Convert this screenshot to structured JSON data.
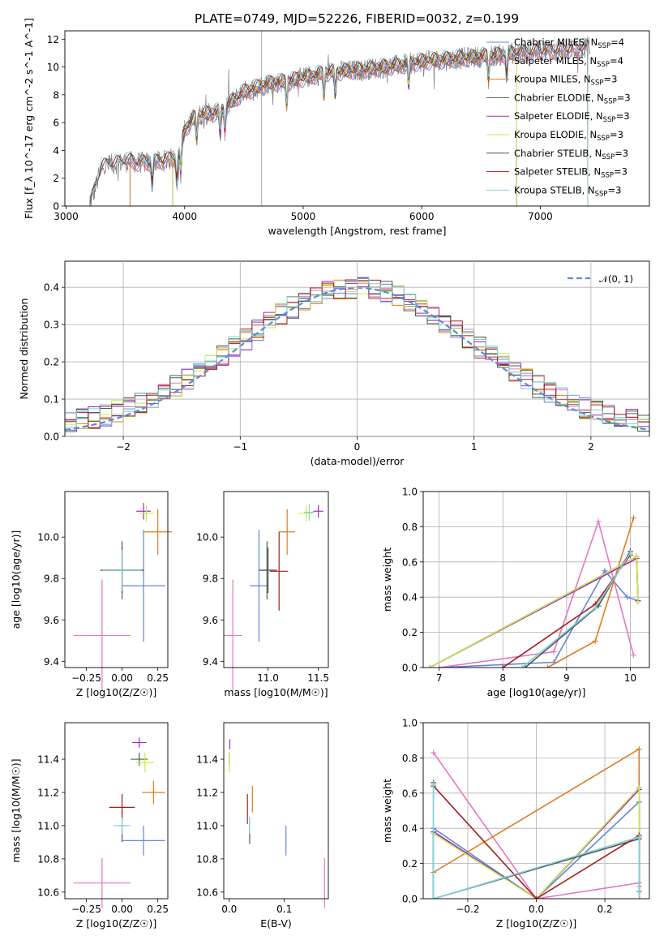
{
  "figure": {
    "title": "PLATE=0749, MJD=52226, FIBERID=0032, z=0.199"
  },
  "colors": {
    "Chabrier MILES": "#6088d8",
    "Salpeter MILES": "#e377c2",
    "Kroupa MILES": "#e07b1f",
    "Chabrier ELODIE": "#3d6b3a",
    "Salpeter ELODIE": "#a02bc2",
    "Kroupa ELODIE": "#c9e84a",
    "Chabrier STELIB": "#555555",
    "Salpeter STELIB": "#a81c1c",
    "Kroupa STELIB": "#7fd3da",
    "data": "#808080",
    "normal": "#5b8bd6"
  },
  "chart_data": [
    {
      "id": "spectrum",
      "type": "line",
      "xlabel": "wavelength [Angstrom, rest frame]",
      "ylabel": "Flux [f_λ 10^-17 erg cm^-2 s^-1 A^-1]",
      "xlim": [
        2990,
        7920
      ],
      "ylim": [
        0,
        12.6
      ],
      "xticks": [
        "3000",
        "4000",
        "5000",
        "6000",
        "7000"
      ],
      "yticks": [
        "0",
        "2",
        "4",
        "6",
        "8",
        "10",
        "12"
      ],
      "legend_position": "top-right",
      "legend": [
        {
          "series": "Chabrier MILES",
          "label": "Chabrier MILES, N",
          "nssp": "=4"
        },
        {
          "series": "Salpeter MILES",
          "label": "Salpeter MILES, N",
          "nssp": "=4"
        },
        {
          "series": "Kroupa MILES",
          "label": "Kroupa MILES, N",
          "nssp": "=3"
        },
        {
          "series": "Chabrier ELODIE",
          "label": "Chabrier ELODIE, N",
          "nssp": "=3"
        },
        {
          "series": "Salpeter ELODIE",
          "label": "Salpeter ELODIE, N",
          "nssp": "=3"
        },
        {
          "series": "Kroupa ELODIE",
          "label": "Kroupa ELODIE, N",
          "nssp": "=3"
        },
        {
          "series": "Chabrier STELIB",
          "label": "Chabrier STELIB, N",
          "nssp": "=3"
        },
        {
          "series": "Salpeter STELIB",
          "label": "Salpeter STELIB, N",
          "nssp": "=3"
        },
        {
          "series": "Kroupa STELIB",
          "label": "Kroupa STELIB, N",
          "nssp": "=3"
        }
      ],
      "continuum": {
        "x": [
          3200,
          3300,
          3500,
          3700,
          3850,
          3950,
          4000,
          4100,
          4300,
          4500,
          4700,
          4900,
          5200,
          5500,
          5800,
          6000,
          6300,
          6600,
          6800,
          7000,
          7200,
          7400
        ],
        "y": [
          0,
          2.8,
          3.2,
          3.1,
          3.3,
          3.5,
          5.5,
          6.5,
          6.8,
          8.2,
          8.8,
          9.0,
          9.6,
          9.8,
          10.1,
          10.4,
          10.6,
          10.8,
          11.0,
          11.1,
          11.2,
          11.4
        ]
      },
      "model_ranges": {
        "MILES": [
          3540,
          7400
        ],
        "ELODIE": [
          3900,
          6800
        ],
        "STELIB": [
          3200,
          7400
        ]
      }
    },
    {
      "id": "residuals",
      "type": "histogram",
      "xlabel": "(data-model)/error",
      "ylabel": "Normed distribution",
      "xlim": [
        -2.5,
        2.5
      ],
      "ylim": [
        0,
        0.47
      ],
      "xticks": [
        "−2",
        "−1",
        "0",
        "1",
        "2"
      ],
      "yticks": [
        "0.0",
        "0.1",
        "0.2",
        "0.3",
        "0.4"
      ],
      "grid": true,
      "legend_position": "top-right",
      "reference_label": "𝒩(0, 1)",
      "bin_width": 0.1,
      "bins": [
        -2.5,
        -2.4,
        -2.3,
        -2.2,
        -2.1,
        -2.0,
        -1.9,
        -1.8,
        -1.7,
        -1.6,
        -1.5,
        -1.4,
        -1.3,
        -1.2,
        -1.1,
        -1.0,
        -0.9,
        -0.8,
        -0.7,
        -0.6,
        -0.5,
        -0.4,
        -0.3,
        -0.2,
        -0.1,
        0.0,
        0.1,
        0.2,
        0.3,
        0.4,
        0.5,
        0.6,
        0.7,
        0.8,
        0.9,
        1.0,
        1.1,
        1.2,
        1.3,
        1.4,
        1.5,
        1.6,
        1.7,
        1.8,
        1.9,
        2.0,
        2.1,
        2.2,
        2.3,
        2.4
      ]
    },
    {
      "id": "age-Z",
      "type": "scatter",
      "xlabel": "Z [log10(Z/Z☉)]",
      "ylabel": "age [log10(age/yr)]",
      "xlim": [
        -0.4,
        0.32
      ],
      "ylim": [
        9.37,
        10.22
      ],
      "xticks": [
        "−0.25",
        "0.00",
        "0.25"
      ],
      "yticks": [
        "9.4",
        "9.6",
        "9.8",
        "10.0"
      ],
      "points": [
        {
          "series": "Chabrier MILES",
          "x": 0.15,
          "y": 9.765,
          "xerr": 0.15,
          "yerr": 0.27
        },
        {
          "series": "Salpeter MILES",
          "x": -0.14,
          "y": 9.525,
          "xerr": 0.2,
          "yerr": 0.27
        },
        {
          "series": "Kroupa MILES",
          "x": 0.25,
          "y": 10.025,
          "xerr": 0.1,
          "yerr": 0.11
        },
        {
          "series": "Chabrier ELODIE",
          "x": 0.0,
          "y": 9.84,
          "xerr": 0.15,
          "yerr": 0.14
        },
        {
          "series": "Salpeter ELODIE",
          "x": 0.15,
          "y": 10.125,
          "xerr": 0.05,
          "yerr": 0.04
        },
        {
          "series": "Kroupa ELODIE",
          "x": 0.17,
          "y": 10.115,
          "xerr": 0.05,
          "yerr": 0.04
        },
        {
          "series": "Chabrier STELIB",
          "x": 0.0,
          "y": 9.84,
          "xerr": 0.15,
          "yerr": 0.11
        },
        {
          "series": "Salpeter STELIB",
          "x": 0.0,
          "y": 9.84,
          "xerr": 0.15,
          "yerr": 0.11
        },
        {
          "series": "Kroupa STELIB",
          "x": 0.0,
          "y": 9.84,
          "xerr": 0.14,
          "yerr": 0.1
        }
      ]
    },
    {
      "id": "age-mass",
      "type": "scatter",
      "xlabel": "mass [log10(M/M☉)]",
      "ylabel": "",
      "xlim": [
        10.56,
        11.6
      ],
      "ylim": [
        9.37,
        10.22
      ],
      "xticks": [
        "11.0",
        "11.5"
      ],
      "yticks": [
        "9.4",
        "9.6",
        "9.8",
        "10.0"
      ],
      "points": [
        {
          "series": "Chabrier MILES",
          "x": 10.91,
          "y": 9.765,
          "xerr": 0.09,
          "yerr": 0.27
        },
        {
          "series": "Salpeter MILES",
          "x": 10.65,
          "y": 9.525,
          "xerr": 0.09,
          "yerr": 0.27
        },
        {
          "series": "Kroupa MILES",
          "x": 11.19,
          "y": 10.025,
          "xerr": 0.08,
          "yerr": 0.11
        },
        {
          "series": "Chabrier ELODIE",
          "x": 10.99,
          "y": 9.84,
          "xerr": 0.08,
          "yerr": 0.14
        },
        {
          "series": "Salpeter ELODIE",
          "x": 11.5,
          "y": 10.125,
          "xerr": 0.05,
          "yerr": 0.03
        },
        {
          "series": "Kroupa ELODIE",
          "x": 11.38,
          "y": 10.115,
          "xerr": 0.07,
          "yerr": 0.04
        },
        {
          "series": "Chabrier STELIB",
          "x": 11.0,
          "y": 9.84,
          "xerr": 0.09,
          "yerr": 0.11
        },
        {
          "series": "Salpeter STELIB",
          "x": 11.11,
          "y": 9.835,
          "xerr": 0.09,
          "yerr": 0.19
        },
        {
          "series": "Kroupa STELIB",
          "x": 11.41,
          "y": 10.12,
          "xerr": 0.05,
          "yerr": 0.04
        }
      ]
    },
    {
      "id": "weight-age",
      "type": "line",
      "xlabel": "age [log10(age/yr)]",
      "ylabel": "mass weight",
      "xlim": [
        6.75,
        10.3
      ],
      "ylim": [
        0,
        1.0
      ],
      "xticks": [
        "7",
        "8",
        "9",
        "10"
      ],
      "yticks": [
        "0.0",
        "0.2",
        "0.4",
        "0.6",
        "0.8",
        "1.0"
      ],
      "grid": true,
      "series": [
        {
          "name": "Chabrier MILES",
          "x": [
            7.0,
            8.8,
            9.6,
            9.95,
            10.12
          ],
          "y": [
            0.0,
            0.03,
            0.55,
            0.4,
            0.38
          ]
        },
        {
          "name": "Salpeter MILES",
          "x": [
            7.0,
            8.8,
            9.5,
            10.05
          ],
          "y": [
            0.0,
            0.09,
            0.83,
            0.07
          ]
        },
        {
          "name": "Kroupa MILES",
          "x": [
            8.7,
            9.45,
            10.05
          ],
          "y": [
            0.0,
            0.15,
            0.85
          ]
        },
        {
          "name": "Chabrier ELODIE",
          "x": [
            6.85,
            10.1,
            10.12
          ],
          "y": [
            0.0,
            0.63,
            0.38
          ]
        },
        {
          "name": "Salpeter ELODIE",
          "x": [
            6.85,
            10.1,
            10.12
          ],
          "y": [
            0.0,
            0.62,
            0.38
          ]
        },
        {
          "name": "Kroupa ELODIE",
          "x": [
            6.85,
            10.1,
            10.12
          ],
          "y": [
            0.0,
            0.63,
            0.37
          ]
        },
        {
          "name": "Chabrier STELIB",
          "x": [
            8.35,
            9.5,
            10.0
          ],
          "y": [
            0.0,
            0.35,
            0.66
          ]
        },
        {
          "name": "Salpeter STELIB",
          "x": [
            8.0,
            9.45,
            10.0
          ],
          "y": [
            0.0,
            0.36,
            0.64
          ]
        },
        {
          "name": "Kroupa STELIB",
          "x": [
            8.3,
            9.45,
            10.0
          ],
          "y": [
            0.0,
            0.34,
            0.65
          ]
        }
      ]
    },
    {
      "id": "mass-Z",
      "type": "scatter",
      "xlabel": "Z [log10(Z/Z☉)]",
      "ylabel": "mass [log10(M/M☉)]",
      "xlim": [
        -0.4,
        0.32
      ],
      "ylim": [
        10.56,
        11.62
      ],
      "xticks": [
        "−0.25",
        "0.00",
        "0.25"
      ],
      "yticks": [
        "10.6",
        "10.8",
        "11.0",
        "11.2",
        "11.4"
      ],
      "points": [
        {
          "series": "Chabrier MILES",
          "x": 0.15,
          "y": 10.91,
          "xerr": 0.15,
          "yerr": 0.09
        },
        {
          "series": "Salpeter MILES",
          "x": -0.14,
          "y": 10.655,
          "xerr": 0.2,
          "yerr": 0.15
        },
        {
          "series": "Kroupa MILES",
          "x": 0.22,
          "y": 11.2,
          "xerr": 0.08,
          "yerr": 0.07
        },
        {
          "series": "Chabrier ELODIE",
          "x": 0.12,
          "y": 11.4,
          "xerr": 0.06,
          "yerr": 0.04
        },
        {
          "series": "Salpeter ELODIE",
          "x": 0.12,
          "y": 11.5,
          "xerr": 0.05,
          "yerr": 0.03
        },
        {
          "series": "Kroupa ELODIE",
          "x": 0.16,
          "y": 11.38,
          "xerr": 0.06,
          "yerr": 0.06
        },
        {
          "series": "Chabrier STELIB",
          "x": 0.0,
          "y": 11.0,
          "xerr": 0.03,
          "yerr": 0.1
        },
        {
          "series": "Salpeter STELIB",
          "x": 0.0,
          "y": 11.11,
          "xerr": 0.09,
          "yerr": 0.08
        },
        {
          "series": "Kroupa STELIB",
          "x": 0.0,
          "y": 11.0,
          "xerr": 0.06,
          "yerr": 0.05
        }
      ]
    },
    {
      "id": "mass-EBV",
      "type": "scatter",
      "xlabel": "E(B-V)",
      "ylabel": "",
      "xlim": [
        -0.01,
        0.18
      ],
      "ylim": [
        10.56,
        11.62
      ],
      "xticks": [
        "0.0",
        "0.1"
      ],
      "yticks": [
        "10.6",
        "10.8",
        "11.0",
        "11.2",
        "11.4"
      ],
      "points": [
        {
          "series": "Chabrier MILES",
          "x": 0.103,
          "y": 10.91,
          "yerr": 0.09
        },
        {
          "series": "Salpeter MILES",
          "x": 0.173,
          "y": 10.655,
          "yerr": 0.15
        },
        {
          "series": "Kroupa MILES",
          "x": 0.042,
          "y": 11.16,
          "yerr": 0.08
        },
        {
          "series": "Chabrier ELODIE",
          "x": 0.0,
          "y": 11.4,
          "yerr": 0.04
        },
        {
          "series": "Salpeter ELODIE",
          "x": 0.001,
          "y": 11.49,
          "yerr": 0.03
        },
        {
          "series": "Kroupa ELODIE",
          "x": 0.0,
          "y": 11.38,
          "yerr": 0.06
        },
        {
          "series": "Chabrier STELIB",
          "x": 0.037,
          "y": 10.97,
          "yerr": 0.08
        },
        {
          "series": "Salpeter STELIB",
          "x": 0.033,
          "y": 11.1,
          "yerr": 0.09
        },
        {
          "series": "Kroupa STELIB",
          "x": 0.037,
          "y": 11.0,
          "yerr": 0.05
        }
      ]
    },
    {
      "id": "weight-Z",
      "type": "line",
      "xlabel": "Z [log10(Z/Z☉)]",
      "ylabel": "mass weight",
      "xlim": [
        -0.33,
        0.33
      ],
      "ylim": [
        0,
        1.0
      ],
      "xticks": [
        "−0.2",
        "0.0",
        "0.2"
      ],
      "yticks": [
        "0.0",
        "0.2",
        "0.4",
        "0.6",
        "0.8",
        "1.0"
      ],
      "grid": true,
      "series": [
        {
          "name": "Chabrier MILES",
          "x": [
            -0.3,
            -0.3,
            0.0,
            0.3,
            0.3
          ],
          "y": [
            0.0,
            0.4,
            0.0,
            0.55,
            0.04
          ]
        },
        {
          "name": "Salpeter MILES",
          "x": [
            -0.3,
            0.0,
            0.3,
            0.3
          ],
          "y": [
            0.83,
            0.0,
            0.09,
            0.07
          ]
        },
        {
          "name": "Kroupa MILES",
          "x": [
            -0.3,
            0.3,
            0.3
          ],
          "y": [
            0.15,
            0.85,
            0.0
          ]
        },
        {
          "name": "Chabrier ELODIE",
          "x": [
            -0.3,
            -0.3,
            0.0,
            0.3,
            0.3
          ],
          "y": [
            0.0,
            0.38,
            0.0,
            0.63,
            0.0
          ]
        },
        {
          "name": "Salpeter ELODIE",
          "x": [
            -0.3,
            -0.3,
            0.0,
            0.3,
            0.3
          ],
          "y": [
            0.0,
            0.38,
            0.0,
            0.62,
            0.0
          ]
        },
        {
          "name": "Kroupa ELODIE",
          "x": [
            -0.3,
            -0.3,
            0.0,
            0.3,
            0.3
          ],
          "y": [
            0.0,
            0.37,
            0.0,
            0.63,
            0.0
          ]
        },
        {
          "name": "Chabrier STELIB",
          "x": [
            -0.3,
            -0.3,
            0.3,
            0.3
          ],
          "y": [
            0.66,
            0.0,
            0.34,
            0.0
          ]
        },
        {
          "name": "Salpeter STELIB",
          "x": [
            -0.3,
            0.0,
            0.3,
            0.3
          ],
          "y": [
            0.64,
            0.0,
            0.36,
            0.0
          ]
        },
        {
          "name": "Kroupa STELIB",
          "x": [
            -0.3,
            -0.3,
            0.3,
            0.3
          ],
          "y": [
            0.65,
            0.0,
            0.35,
            0.0
          ]
        }
      ]
    }
  ]
}
